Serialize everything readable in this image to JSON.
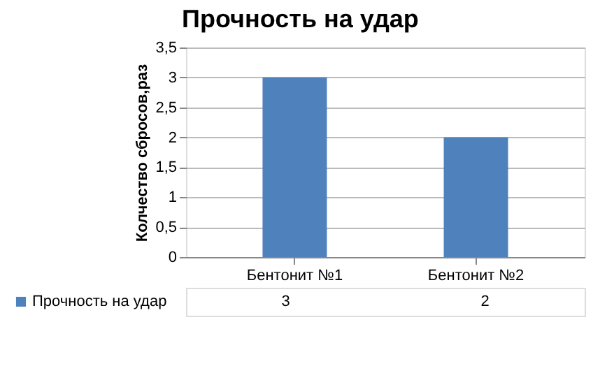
{
  "chart_data": {
    "type": "bar",
    "title": "Прочность на удар",
    "ylabel": "Колчество сбросов,раз",
    "categories": [
      "Бентонит №1",
      "Бентонит №2"
    ],
    "series": [
      {
        "name": "Прочность на удар",
        "color": "#4f81bd",
        "values": [
          3,
          2
        ]
      }
    ],
    "ylim": [
      0,
      3.5
    ],
    "yticks": [
      0,
      {
        "value": 0.5,
        "label": "0,5"
      },
      1,
      {
        "value": 1.5,
        "label": "1,5"
      },
      2,
      {
        "value": 2.5,
        "label": "2,5"
      },
      3,
      {
        "value": 3.5,
        "label": "3,5"
      }
    ],
    "grid": "y",
    "data_labels": true,
    "legend": "bottom"
  }
}
